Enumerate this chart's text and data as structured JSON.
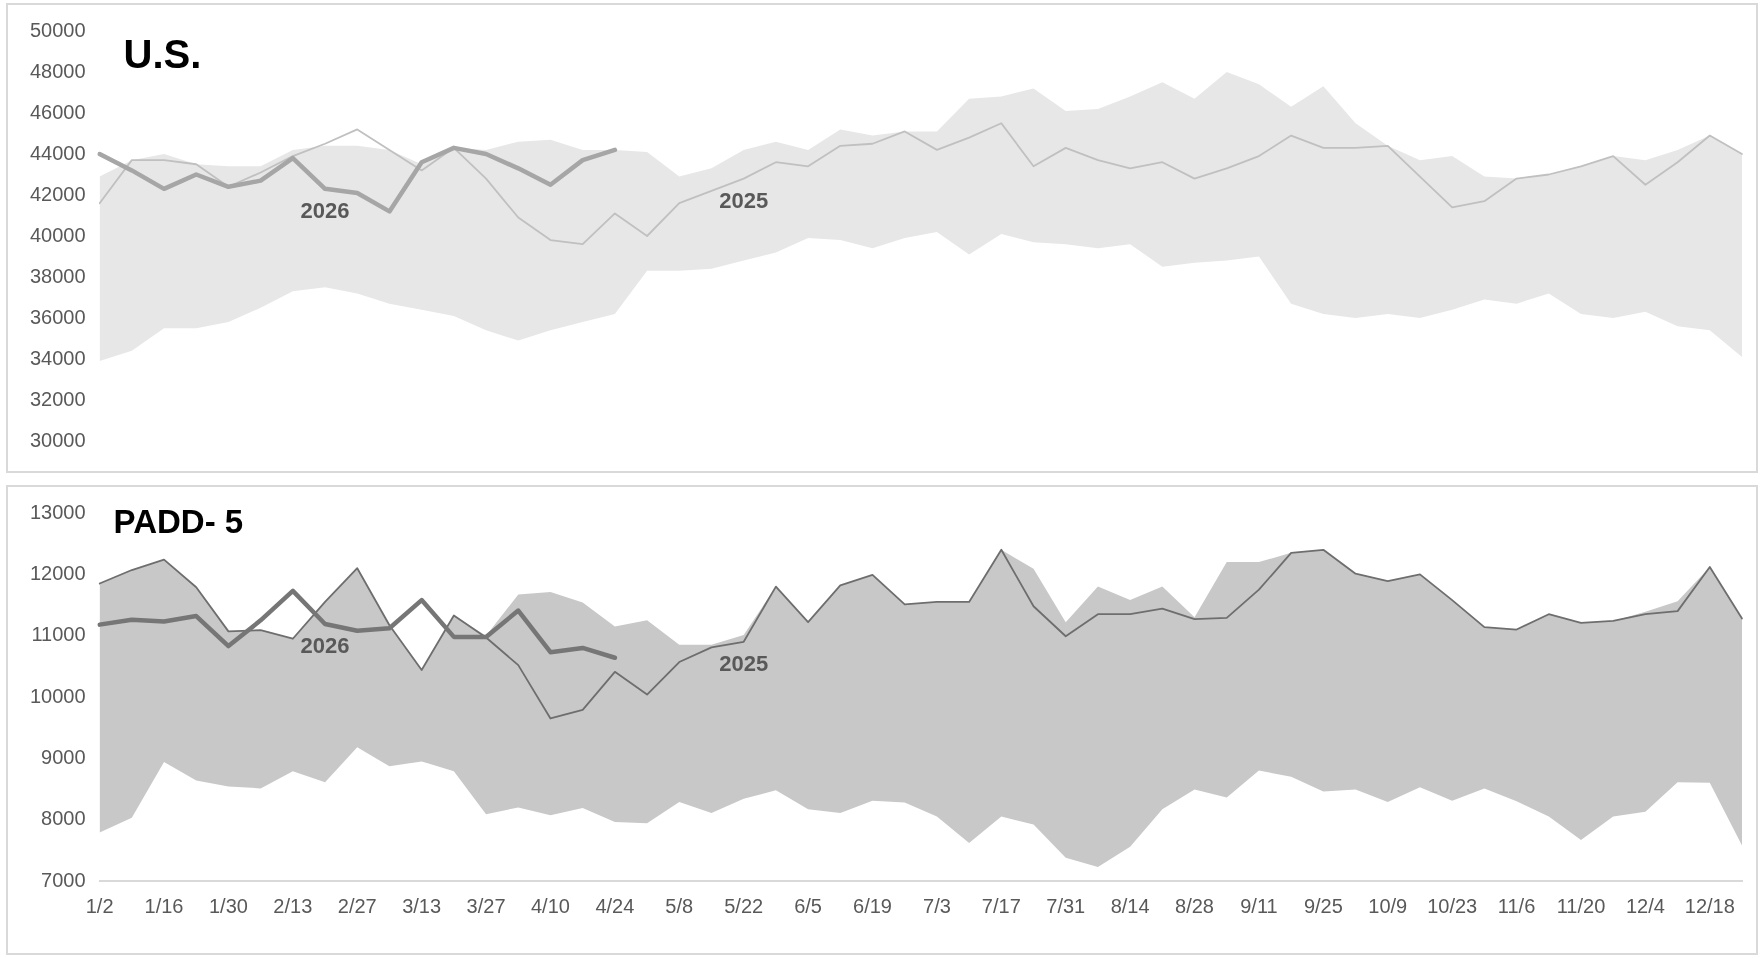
{
  "chart_data": [
    {
      "type": "line",
      "title": "U.S.",
      "tick_labels": "y",
      "grid": false,
      "marker": "none",
      "categories": [
        null,
        null,
        null,
        null,
        null,
        null,
        null,
        null,
        null,
        null,
        null,
        null,
        null,
        null,
        null,
        null,
        null,
        null,
        null,
        null,
        null,
        null,
        null,
        null,
        null,
        null,
        null,
        null,
        null,
        null,
        null,
        null,
        null,
        null,
        null,
        null,
        null,
        null,
        null,
        null,
        null,
        null,
        null,
        null,
        null,
        null,
        null,
        null,
        null,
        null,
        null,
        null
      ],
      "ylim": [
        30000,
        50000
      ],
      "yticks": [
        30000,
        32000,
        34000,
        36000,
        38000,
        40000,
        42000,
        44000,
        46000,
        48000,
        50000
      ],
      "series": [
        {
          "name": "2026",
          "color": "#a6a6a6",
          "values": [
            44000,
            43200,
            42300,
            43000,
            42400,
            42700,
            43800,
            42300,
            42100,
            41200,
            43600,
            44300,
            44000,
            43300,
            42500,
            43700,
            44200,
            null,
            null,
            null,
            null,
            null,
            null,
            null,
            null,
            null,
            null,
            null,
            null,
            null,
            null,
            null,
            null,
            null,
            null,
            null,
            null,
            null,
            null,
            null,
            null,
            null,
            null,
            null,
            null,
            null,
            null,
            null,
            null,
            null,
            null,
            null
          ]
        },
        {
          "name": "2025",
          "color": "#c0c0c0",
          "values": [
            41600,
            43700,
            43700,
            43500,
            42400,
            43100,
            43900,
            44500,
            45200,
            44200,
            43200,
            44300,
            42800,
            40900,
            39800,
            39600,
            41100,
            40000,
            41600,
            42200,
            42800,
            43600,
            43400,
            44400,
            44500,
            45100,
            44200,
            44800,
            45500,
            43400,
            44300,
            43700,
            43300,
            43600,
            42800,
            43300,
            43900,
            44900,
            44300,
            44300,
            44400,
            42900,
            41400,
            41700,
            42800,
            43000,
            43400,
            43900,
            42500,
            43600,
            44900,
            44000
          ],
          "upper": [
            42900,
            43700,
            44000,
            43500,
            43400,
            43400,
            44200,
            44400,
            44400,
            44200,
            43500,
            44300,
            44200,
            44600,
            44700,
            44200,
            44200,
            44100,
            42900,
            43300,
            44200,
            44600,
            44200,
            45200,
            44900,
            45100,
            45100,
            46700,
            46800,
            47200,
            46100,
            46200,
            46800,
            47500,
            46700,
            48000,
            47400,
            46300,
            47300,
            45500,
            44400,
            43700,
            43900,
            42900,
            42800,
            43000,
            43400,
            43900,
            43700,
            44200,
            44900,
            44000
          ],
          "lower": [
            33900,
            34400,
            35500,
            35500,
            35800,
            36500,
            37300,
            37500,
            37200,
            36700,
            36400,
            36100,
            35400,
            34900,
            35400,
            35800,
            36200,
            38300,
            38300,
            38400,
            38800,
            39200,
            39900,
            39800,
            39400,
            39900,
            40200,
            39100,
            40100,
            39700,
            39600,
            39400,
            39600,
            38500,
            38700,
            38800,
            39000,
            36700,
            36200,
            36000,
            36200,
            36000,
            36400,
            36900,
            36700,
            37200,
            36200,
            36000,
            36300,
            35600,
            35400,
            34100
          ]
        }
      ]
    },
    {
      "type": "line",
      "title": "PADD- 5",
      "grid": false,
      "marker": "none",
      "categories": [
        "1/2",
        null,
        "1/16",
        null,
        "1/30",
        null,
        "2/13",
        null,
        "2/27",
        null,
        "3/13",
        null,
        "3/27",
        null,
        "4/10",
        null,
        "4/24",
        null,
        "5/8",
        null,
        "5/22",
        null,
        "6/5",
        null,
        "6/19",
        null,
        "7/3",
        null,
        "7/17",
        null,
        "7/31",
        null,
        "8/14",
        null,
        "8/28",
        null,
        "9/11",
        null,
        "9/25",
        null,
        "10/9",
        null,
        "10/23",
        null,
        "11/6",
        null,
        "11/20",
        null,
        "12/4",
        null,
        "12/18",
        null
      ],
      "ylim": [
        7000,
        13000
      ],
      "yticks": [
        7000,
        8000,
        9000,
        10000,
        11000,
        12000,
        13000
      ],
      "series": [
        {
          "name": "2026",
          "color": "#767676",
          "values": [
            11180,
            11260,
            11230,
            11320,
            10830,
            11250,
            11730,
            11190,
            11080,
            11120,
            11580,
            10980,
            10980,
            11410,
            10730,
            10800,
            10640,
            null,
            null,
            null,
            null,
            null,
            null,
            null,
            null,
            null,
            null,
            null,
            null,
            null,
            null,
            null,
            null,
            null,
            null,
            null,
            null,
            null,
            null,
            null,
            null,
            null,
            null,
            null,
            null,
            null,
            null,
            null,
            null,
            null,
            null,
            null
          ]
        },
        {
          "name": "2025",
          "color": "#6e6e6e",
          "values": [
            11850,
            12070,
            12240,
            11790,
            11070,
            11090,
            10950,
            11550,
            12100,
            11170,
            10440,
            11330,
            10970,
            10520,
            9650,
            9790,
            10410,
            10040,
            10570,
            10810,
            10900,
            11800,
            11220,
            11820,
            11990,
            11510,
            11550,
            11550,
            12400,
            11480,
            10990,
            11350,
            11350,
            11440,
            11270,
            11290,
            11750,
            12350,
            12400,
            12010,
            11890,
            12000,
            11580,
            11140,
            11100,
            11350,
            11210,
            11240,
            11350,
            11400,
            12120,
            11280
          ],
          "upper": [
            11850,
            12070,
            12240,
            11790,
            11070,
            11090,
            10950,
            11550,
            12100,
            11170,
            10440,
            11330,
            11000,
            11670,
            11710,
            11540,
            11150,
            11250,
            10850,
            10850,
            11010,
            11800,
            11220,
            11820,
            11990,
            11510,
            11550,
            11550,
            12400,
            12090,
            11220,
            11800,
            11580,
            11800,
            11300,
            12200,
            12200,
            12350,
            12400,
            12010,
            11890,
            12000,
            11580,
            11140,
            11100,
            11350,
            11210,
            11240,
            11390,
            11560,
            12120,
            11280
          ],
          "lower": [
            7790,
            8030,
            8940,
            8640,
            8540,
            8510,
            8790,
            8610,
            9180,
            8870,
            8950,
            8790,
            8090,
            8200,
            8070,
            8190,
            7960,
            7940,
            8290,
            8110,
            8340,
            8480,
            8170,
            8110,
            8310,
            8280,
            8050,
            7620,
            8050,
            7920,
            7380,
            7230,
            7560,
            8170,
            8490,
            8360,
            8800,
            8700,
            8460,
            8490,
            8290,
            8530,
            8310,
            8510,
            8300,
            8050,
            7670,
            8050,
            8130,
            8610,
            8600,
            7580
          ]
        }
      ]
    }
  ]
}
